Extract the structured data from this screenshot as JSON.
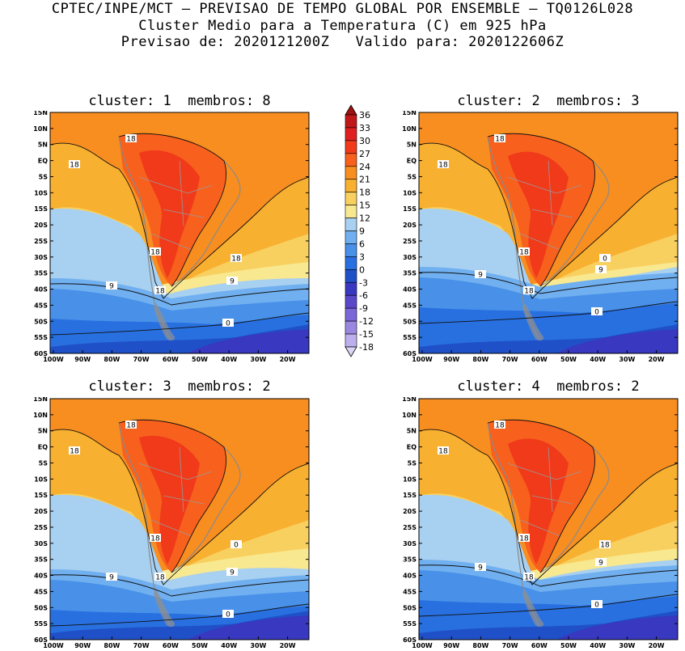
{
  "header": {
    "line1": "CPTEC/INPE/MCT — PREVISAO DE TEMPO GLOBAL POR ENSEMBLE — TQ0126L028",
    "line2": "Cluster Medio para a Temperatura (C) em 925 hPa",
    "line3": "Previsao de: 2020121200Z   Valido para: 2020122606Z"
  },
  "panels": [
    {
      "title": "cluster: 1  membros: 8"
    },
    {
      "title": "cluster: 2  membros: 3"
    },
    {
      "title": "cluster: 3  membros: 2"
    },
    {
      "title": "cluster: 4  membros: 2"
    }
  ],
  "axes": {
    "lat_labels": [
      "15N",
      "10N",
      "5N",
      "EQ",
      "5S",
      "10S",
      "15S",
      "20S",
      "25S",
      "30S",
      "35S",
      "40S",
      "45S",
      "50S",
      "55S",
      "60S"
    ],
    "lon_labels": [
      "100W",
      "90W",
      "80W",
      "70W",
      "60W",
      "50W",
      "40W",
      "30W",
      "20W"
    ]
  },
  "contour_labels": {
    "p1": [
      "18",
      "18",
      "18",
      "18",
      "9",
      "9",
      "0",
      "18"
    ],
    "p2": [
      "18",
      "18",
      "18",
      "18",
      "9",
      "9",
      "0",
      "0"
    ],
    "p3": [
      "18",
      "18",
      "18",
      "18",
      "9",
      "9",
      "0",
      "0"
    ],
    "p4": [
      "18",
      "18",
      "18",
      "18",
      "9",
      "9",
      "0",
      "18"
    ]
  },
  "colorbar": {
    "levels": [
      "36",
      "33",
      "30",
      "27",
      "24",
      "21",
      "18",
      "15",
      "12",
      "9",
      "6",
      "3",
      "0",
      "-3",
      "-6",
      "-9",
      "-12",
      "-15",
      "-18"
    ],
    "colors": [
      "#a01010",
      "#c01818",
      "#e02020",
      "#f03a1a",
      "#f8601e",
      "#f88e20",
      "#f8b030",
      "#f8d060",
      "#f8e890",
      "#a8d0f0",
      "#70b0f0",
      "#4890e8",
      "#2870e0",
      "#2050c8",
      "#3838c0",
      "#5a48c8",
      "#7a68d8",
      "#9a88e0",
      "#bcb0ec",
      "#dcd4f6"
    ]
  },
  "map_colors": {
    "t27": "#f03a1a",
    "t24": "#f8601e",
    "t21": "#f88e20",
    "t18": "#f8b030",
    "t15": "#f8d060",
    "t12": "#f8e890",
    "t9": "#a8d0f0",
    "t6": "#70b0f0",
    "t3": "#4890e8",
    "t0": "#2870e0",
    "tm3": "#2050c8",
    "tm6": "#3838c0",
    "tm9": "#5a48c8",
    "land": "#909090"
  }
}
